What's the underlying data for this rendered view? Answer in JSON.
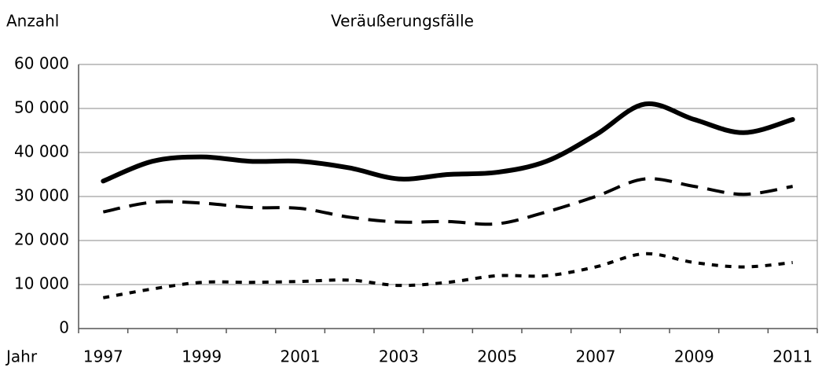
{
  "chart_data": {
    "type": "line",
    "title": "Veräußerungsfälle",
    "y_label": "Anzahl",
    "x_label": "Jahr",
    "categories": [
      "1997",
      null,
      "1999",
      null,
      "2001",
      null,
      "2003",
      null,
      "2005",
      null,
      "2007",
      null,
      "2009",
      null,
      "2011"
    ],
    "series": [
      {
        "color": "#000000",
        "dash": "solid",
        "values": [
          33500,
          38000,
          39000,
          38000,
          38000,
          36500,
          34000,
          35000,
          35500,
          38000,
          44000,
          51000,
          47500,
          44500,
          47500
        ]
      },
      {
        "color": "#000000",
        "dash": "dashed",
        "values": [
          26500,
          28700,
          28500,
          27500,
          27300,
          25300,
          24200,
          24300,
          23800,
          26500,
          30000,
          34000,
          32300,
          30500,
          32300
        ]
      },
      {
        "color": "#000000",
        "dash": "dotted",
        "values": [
          7000,
          9000,
          10500,
          10500,
          10700,
          11000,
          9800,
          10500,
          12000,
          12000,
          14000,
          17000,
          15000,
          14000,
          15000
        ]
      }
    ],
    "ylim": [
      0,
      60000
    ],
    "yticks": [
      0,
      {
        "value": 10000,
        "label": "10 000"
      },
      {
        "value": 20000,
        "label": "20 000"
      },
      {
        "value": 30000,
        "label": "30 000"
      },
      {
        "value": 40000,
        "label": "40 000"
      },
      {
        "value": 50000,
        "label": "50 000"
      },
      {
        "value": 60000,
        "label": "60 000"
      }
    ],
    "grid": true
  }
}
